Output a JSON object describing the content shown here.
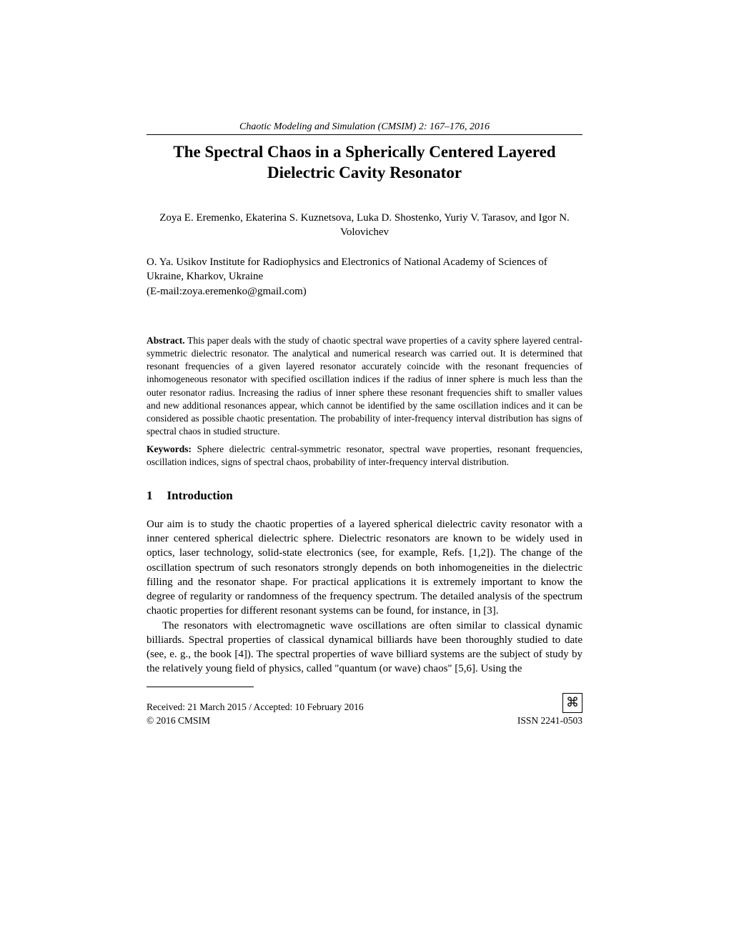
{
  "journal_header": "Chaotic Modeling and Simulation (CMSIM) 2: 167–176, 2016",
  "title": "The Spectral Chaos in a Spherically Centered Layered Dielectric Cavity Resonator",
  "authors": "Zoya E. Eremenko, Ekaterina S. Kuznetsova, Luka D. Shostenko, Yuriy V. Tarasov, and Igor N. Volovichev",
  "affiliation_line1": "O. Ya. Usikov Institute for Radiophysics and Electronics of National Academy of Sciences of Ukraine, Kharkov, Ukraine",
  "affiliation_line2": "(E-mail:zoya.eremenko@gmail.com)",
  "abstract_label": "Abstract.",
  "abstract_text": " This paper deals with the study of chaotic spectral wave properties of a cavity sphere layered central-symmetric dielectric resonator. The analytical and numerical research was carried out. It is determined that resonant frequencies of a given layered resonator accurately coincide with the resonant frequencies of inhomogeneous resonator with specified oscillation indices if the radius of inner sphere is much less than the outer resonator radius. Increasing the radius of inner sphere these resonant frequencies shift to smaller values and new additional resonances appear, which cannot be identified by the same oscillation indices and it can be considered as possible chaotic presentation. The probability of inter-frequency interval distribution has signs of spectral chaos in studied structure.",
  "keywords_label": "Keywords:",
  "keywords_text": " Sphere dielectric central-symmetric resonator, spectral wave properties, resonant frequencies, oscillation indices, signs of spectral chaos, probability of inter-frequency interval distribution.",
  "section_number": "1",
  "section_title": "Introduction",
  "paragraph1": "Our aim is to study the chaotic properties of a layered spherical dielectric cavity resonator with a inner centered spherical dielectric sphere. Dielectric resonators are known to be widely used in optics, laser technology, solid-state electronics (see, for example, Refs. [1,2]). The change of the oscillation spectrum of such resonators strongly depends on both inhomogeneities in the dielectric filling and the resonator shape. For practical applications it is extremely important to know the degree of regularity or randomness of the frequency spectrum. The detailed analysis of the spectrum chaotic properties for different resonant systems can be found, for instance, in  [3].",
  "paragraph2": "The resonators with electromagnetic wave oscillations are often similar to classical dynamic billiards. Spectral properties of classical dynamical billiards have been thoroughly studied to date (see, e. g., the book [4]). The spectral properties of wave billiard systems are the subject of study by the relatively young field of physics, called \"quantum (or wave) chaos\" [5,6]. Using the",
  "footer_received": "Received: 21 March 2015 / Accepted: 10 February 2016",
  "footer_copyright": "© 2016 CMSIM",
  "footer_issn": "ISSN 2241-0503",
  "logo_glyph": "⌘"
}
